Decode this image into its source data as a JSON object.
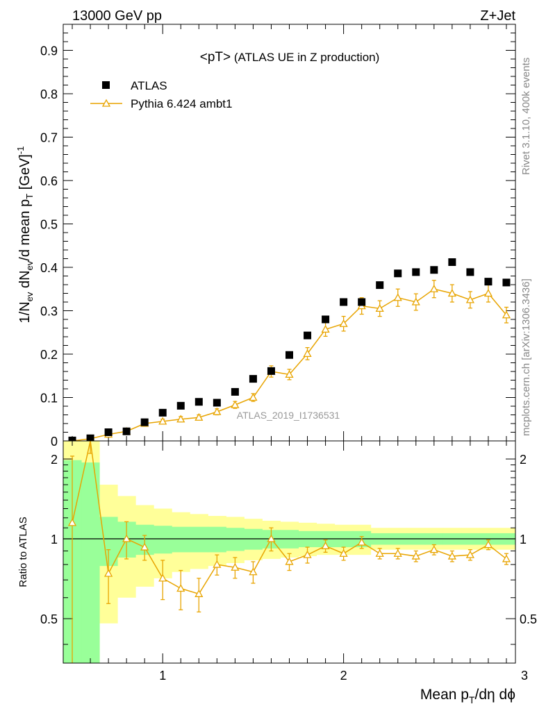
{
  "header": {
    "left": "13000 GeV pp",
    "right": "Z+Jet"
  },
  "side_labels": {
    "rivet": "Rivet 3.1.10,  400k events",
    "source": "mcplots.cern.ch [arXiv:1306.3436]"
  },
  "plot_title_main": "<pT>",
  "plot_title_sub": " (ATLAS UE in Z production)",
  "watermark": "ATLAS_2019_I1736531",
  "colors": {
    "data": "#000000",
    "mc": "#e8a400",
    "band_inner": "#99ff99",
    "band_outer": "#ffff99"
  },
  "chart_data": [
    {
      "type": "scatter",
      "panel": "main",
      "ylabel": "1/N_ev dN_ev/d mean p_T [GeV]^-1",
      "xlim": [
        0.45,
        2.95
      ],
      "ylim": [
        0,
        0.96
      ],
      "yticks": [
        0,
        0.1,
        0.2,
        0.3,
        0.4,
        0.5,
        0.6,
        0.7,
        0.8,
        0.9
      ],
      "ytick_labels": [
        "0",
        "0.1",
        "0.2",
        "0.3",
        "0.4",
        "0.5",
        "0.6",
        "0.7",
        "0.8",
        "0.9"
      ],
      "legend_position": "top-left",
      "x": [
        0.5,
        0.6,
        0.7,
        0.8,
        0.9,
        1.0,
        1.1,
        1.2,
        1.3,
        1.4,
        1.5,
        1.6,
        1.7,
        1.8,
        1.9,
        2.0,
        2.1,
        2.2,
        2.3,
        2.4,
        2.5,
        2.6,
        2.7,
        2.8,
        2.9
      ],
      "series": [
        {
          "name": "ATLAS",
          "style": "square-marker",
          "values": [
            0.001,
            0.006,
            0.02,
            0.022,
            0.043,
            0.065,
            0.081,
            0.09,
            0.088,
            0.113,
            0.143,
            0.161,
            0.198,
            0.243,
            0.28,
            0.32,
            0.32,
            0.359,
            0.386,
            0.389,
            0.394,
            0.412,
            0.389,
            0.367,
            0.365
          ]
        },
        {
          "name": "Pythia 6.424 ambt1",
          "style": "line-open-triangle",
          "values": [
            0.0,
            0.005,
            0.015,
            0.022,
            0.04,
            0.045,
            0.05,
            0.054,
            0.067,
            0.083,
            0.1,
            0.16,
            0.153,
            0.201,
            0.257,
            0.27,
            0.311,
            0.305,
            0.33,
            0.32,
            0.35,
            0.34,
            0.325,
            0.34,
            0.29
          ],
          "errors": [
            0.001,
            0.002,
            0.003,
            0.004,
            0.005,
            0.005,
            0.006,
            0.006,
            0.007,
            0.008,
            0.009,
            0.013,
            0.012,
            0.014,
            0.016,
            0.017,
            0.019,
            0.018,
            0.02,
            0.019,
            0.02,
            0.02,
            0.019,
            0.02,
            0.018
          ]
        }
      ]
    },
    {
      "type": "line",
      "panel": "ratio",
      "ylabel": "Ratio to ATLAS",
      "xlabel": "Mean p_T/dη dφ",
      "xlim": [
        0.45,
        2.95
      ],
      "ylim": [
        0.34,
        2.34
      ],
      "xticks": [
        1,
        2,
        3
      ],
      "xtick_labels": [
        "1",
        "2",
        "3"
      ],
      "yticks": [
        0.5,
        1,
        2
      ],
      "ytick_labels": [
        "0.5",
        "1",
        "2"
      ],
      "x": [
        0.5,
        0.6,
        0.7,
        0.8,
        0.9,
        1.0,
        1.1,
        1.2,
        1.3,
        1.4,
        1.5,
        1.6,
        1.7,
        1.8,
        1.9,
        2.0,
        2.1,
        2.2,
        2.3,
        2.4,
        2.5,
        2.6,
        2.7,
        2.8,
        2.9
      ],
      "series": [
        {
          "name": "Pythia 6.424 ambt1",
          "values": [
            1.15,
            2.6,
            0.74,
            1.0,
            0.93,
            0.71,
            0.65,
            0.62,
            0.8,
            0.78,
            0.75,
            1.0,
            0.82,
            0.87,
            0.94,
            0.88,
            0.97,
            0.88,
            0.88,
            0.86,
            0.91,
            0.86,
            0.87,
            0.95,
            0.84
          ],
          "errors": [
            0.9,
            0.5,
            0.17,
            0.16,
            0.1,
            0.12,
            0.11,
            0.09,
            0.07,
            0.07,
            0.07,
            0.1,
            0.06,
            0.06,
            0.05,
            0.05,
            0.05,
            0.04,
            0.04,
            0.04,
            0.04,
            0.04,
            0.04,
            0.04,
            0.04
          ]
        }
      ],
      "bands": {
        "edges": [
          0.45,
          0.55,
          0.65,
          0.75,
          0.85,
          0.95,
          1.05,
          1.15,
          1.25,
          1.35,
          1.45,
          1.55,
          1.65,
          1.75,
          1.85,
          1.95,
          2.05,
          2.15,
          2.25,
          2.35,
          2.45,
          2.55,
          2.65,
          2.75,
          2.85,
          2.95
        ],
        "inner": [
          [
            0.34,
            1.98
          ],
          [
            0.34,
            1.94
          ],
          [
            0.79,
            1.21
          ],
          [
            0.85,
            1.16
          ],
          [
            0.87,
            1.13
          ],
          [
            0.88,
            1.12
          ],
          [
            0.89,
            1.11
          ],
          [
            0.89,
            1.11
          ],
          [
            0.89,
            1.11
          ],
          [
            0.9,
            1.1
          ],
          [
            0.91,
            1.09
          ],
          [
            0.92,
            1.08
          ],
          [
            0.92,
            1.08
          ],
          [
            0.93,
            1.07
          ],
          [
            0.93,
            1.07
          ],
          [
            0.93,
            1.07
          ],
          [
            0.93,
            1.07
          ],
          [
            0.95,
            1.05
          ],
          [
            0.95,
            1.05
          ],
          [
            0.95,
            1.05
          ],
          [
            0.95,
            1.05
          ],
          [
            0.95,
            1.05
          ],
          [
            0.95,
            1.05
          ],
          [
            0.95,
            1.05
          ],
          [
            0.95,
            1.05
          ]
        ],
        "outer": [
          [
            0.34,
            2.34
          ],
          [
            0.34,
            2.34
          ],
          [
            0.48,
            1.6
          ],
          [
            0.6,
            1.45
          ],
          [
            0.66,
            1.34
          ],
          [
            0.71,
            1.3
          ],
          [
            0.75,
            1.26
          ],
          [
            0.77,
            1.24
          ],
          [
            0.79,
            1.22
          ],
          [
            0.81,
            1.21
          ],
          [
            0.83,
            1.19
          ],
          [
            0.84,
            1.17
          ],
          [
            0.85,
            1.16
          ],
          [
            0.86,
            1.15
          ],
          [
            0.87,
            1.14
          ],
          [
            0.87,
            1.13
          ],
          [
            0.87,
            1.13
          ],
          [
            0.91,
            1.1
          ],
          [
            0.91,
            1.1
          ],
          [
            0.91,
            1.1
          ],
          [
            0.91,
            1.1
          ],
          [
            0.91,
            1.1
          ],
          [
            0.91,
            1.1
          ],
          [
            0.91,
            1.1
          ],
          [
            0.91,
            1.1
          ]
        ]
      }
    }
  ]
}
